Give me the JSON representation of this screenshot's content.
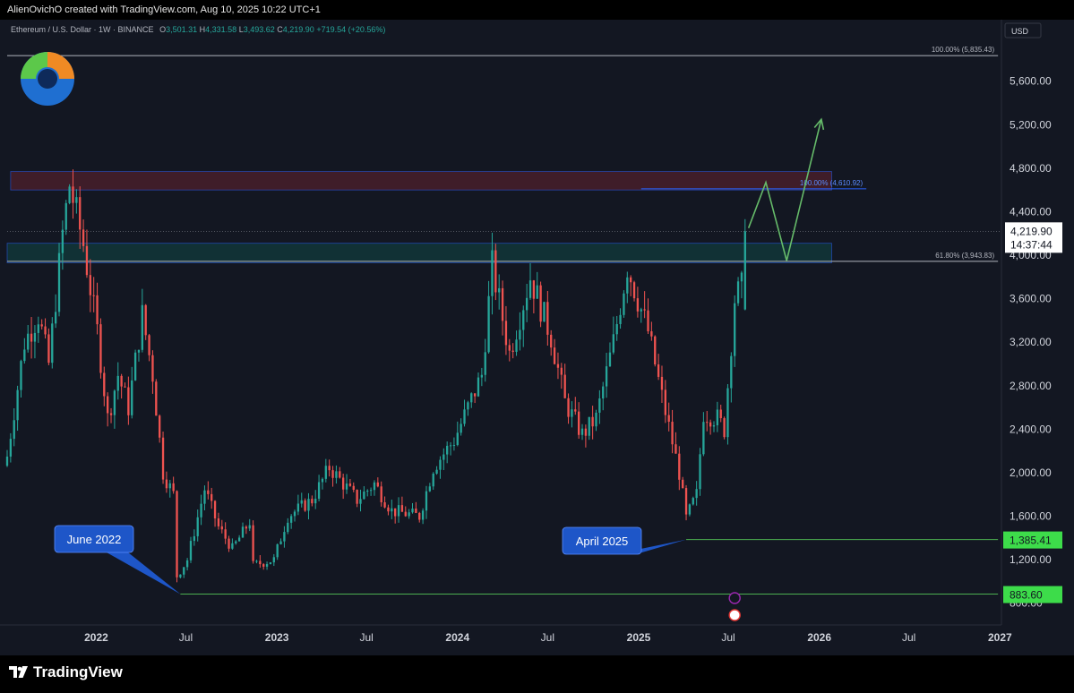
{
  "header": {
    "credit": "AlienOvichO created with TradingView.com, Aug 10, 2025 10:22 UTC+1"
  },
  "symbol": {
    "name": "Ethereum / U.S. Dollar · 1W · BINANCE",
    "o_label": "O",
    "o_val": "3,501.31",
    "h_label": "H",
    "h_val": "4,331.58",
    "l_label": "L",
    "l_val": "3,493.62",
    "c_label": "C",
    "c_val": "4,219.90",
    "change": "+719.54 (+20.56%)"
  },
  "brand": {
    "name": "TradingView"
  },
  "colors": {
    "up": "#26a69a",
    "down": "#ef5350",
    "background": "#131722",
    "green_line": "#4caf50",
    "blue_line": "#2962ff",
    "callout": "#1e56c8",
    "projection": "#66bb6a"
  },
  "chart_data": {
    "type": "candlestick",
    "currency": "USD",
    "ylim": [
      600,
      5960
    ],
    "ytick_labels": [
      "800.00",
      "1,200.00",
      "1,600.00",
      "2,000.00",
      "2,400.00",
      "2,800.00",
      "3,200.00",
      "3,600.00",
      "4,000.00",
      "4,400.00",
      "4,800.00",
      "5,200.00",
      "5,600.00"
    ],
    "yticks": [
      800,
      1200,
      1600,
      2000,
      2400,
      2800,
      3200,
      3600,
      4000,
      4400,
      4800,
      5200,
      5600
    ],
    "x_range": [
      "2021-07-05",
      "2027-01-04"
    ],
    "xticks": [
      "2022",
      "Jul",
      "2023",
      "Jul",
      "2024",
      "Jul",
      "2025",
      "Jul",
      "2026",
      "Jul",
      "2027"
    ],
    "xtick_dates": [
      "2022-01-01",
      "2022-07-01",
      "2023-01-01",
      "2023-07-01",
      "2024-01-01",
      "2024-07-01",
      "2025-01-01",
      "2025-07-01",
      "2026-01-01",
      "2026-07-01",
      "2027-01-01"
    ],
    "anchors": [
      {
        "date": "2021-07-05",
        "close": 2150
      },
      {
        "date": "2021-08-09",
        "close": 3200
      },
      {
        "date": "2021-09-06",
        "close": 3450
      },
      {
        "date": "2021-09-27",
        "close": 3000
      },
      {
        "date": "2021-10-25",
        "close": 4200
      },
      {
        "date": "2021-11-08",
        "close": 4650
      },
      {
        "date": "2021-12-06",
        "close": 4100
      },
      {
        "date": "2022-01-03",
        "close": 3300
      },
      {
        "date": "2022-01-24",
        "close": 2500
      },
      {
        "date": "2022-02-14",
        "close": 2900
      },
      {
        "date": "2022-03-07",
        "close": 2600
      },
      {
        "date": "2022-04-04",
        "close": 3450
      },
      {
        "date": "2022-04-25",
        "close": 2900
      },
      {
        "date": "2022-05-16",
        "close": 2000
      },
      {
        "date": "2022-06-06",
        "close": 1800
      },
      {
        "date": "2022-06-13",
        "close": 1050
      },
      {
        "date": "2022-07-04",
        "close": 1200
      },
      {
        "date": "2022-08-08",
        "close": 1850
      },
      {
        "date": "2022-09-05",
        "close": 1500
      },
      {
        "date": "2022-10-03",
        "close": 1300
      },
      {
        "date": "2022-11-07",
        "close": 1550
      },
      {
        "date": "2022-11-14",
        "close": 1150
      },
      {
        "date": "2022-12-26",
        "close": 1200
      },
      {
        "date": "2023-01-23",
        "close": 1600
      },
      {
        "date": "2023-03-13",
        "close": 1750
      },
      {
        "date": "2023-04-17",
        "close": 2050
      },
      {
        "date": "2023-06-12",
        "close": 1750
      },
      {
        "date": "2023-07-17",
        "close": 1900
      },
      {
        "date": "2023-08-21",
        "close": 1650
      },
      {
        "date": "2023-10-16",
        "close": 1600
      },
      {
        "date": "2023-11-13",
        "close": 2050
      },
      {
        "date": "2023-12-25",
        "close": 2300
      },
      {
        "date": "2024-02-19",
        "close": 2900
      },
      {
        "date": "2024-03-11",
        "close": 3900
      },
      {
        "date": "2024-04-15",
        "close": 3100
      },
      {
        "date": "2024-05-27",
        "close": 3800
      },
      {
        "date": "2024-07-08",
        "close": 3250
      },
      {
        "date": "2024-08-05",
        "close": 2650
      },
      {
        "date": "2024-09-09",
        "close": 2350
      },
      {
        "date": "2024-10-07",
        "close": 2500
      },
      {
        "date": "2024-11-11",
        "close": 3200
      },
      {
        "date": "2024-12-09",
        "close": 3900
      },
      {
        "date": "2025-01-20",
        "close": 3300
      },
      {
        "date": "2025-02-17",
        "close": 2700
      },
      {
        "date": "2025-03-24",
        "close": 2000
      },
      {
        "date": "2025-04-07",
        "close": 1580
      },
      {
        "date": "2025-04-28",
        "close": 1800
      },
      {
        "date": "2025-05-12",
        "close": 2550
      },
      {
        "date": "2025-06-09",
        "close": 2500
      },
      {
        "date": "2025-06-23",
        "close": 2400
      },
      {
        "date": "2025-07-14",
        "close": 3600
      },
      {
        "date": "2025-07-28",
        "close": 3700
      },
      {
        "date": "2025-08-04",
        "close": 4219.9
      }
    ],
    "zones": [
      {
        "kind": "resistance",
        "from": "2021-07-12",
        "to": "2026-01-26",
        "low": 4600,
        "high": 4770,
        "color": "#f23645"
      },
      {
        "kind": "support",
        "from": "2021-07-05",
        "to": "2026-01-26",
        "low": 3930,
        "high": 4110,
        "color": "#089981"
      }
    ],
    "hlines": [
      {
        "label": "100.00% (5,835.43)",
        "value": 5835.43,
        "from": "2021-07-05",
        "to": "2026-12-28",
        "color": "#b2b5be"
      },
      {
        "label": "100.00% (4,610.92)",
        "value": 4610.92,
        "from": "2025-01-06",
        "to": "2026-04-06",
        "color": "#2962ff"
      },
      {
        "label": "61.80% (3,943.83)",
        "value": 3943.83,
        "from": "2021-07-05",
        "to": "2026-12-28",
        "color": "#b2b5be"
      },
      {
        "label": "",
        "value": 1385.41,
        "from": "2025-04-07",
        "to": "2026-12-28",
        "color": "#4caf50"
      },
      {
        "label": "",
        "value": 883.6,
        "from": "2022-06-20",
        "to": "2026-12-28",
        "color": "#4caf50"
      }
    ],
    "price_badges": [
      {
        "value": 4219.9,
        "text": "4,219.90",
        "sub": "14:37:44"
      },
      {
        "value": 1385.41,
        "text": "1,385.41"
      },
      {
        "value": 883.6,
        "text": "883.60"
      }
    ],
    "callouts": [
      {
        "text": "June 2022",
        "date": "2022-06-20",
        "value": 883.6
      },
      {
        "text": "April 2025",
        "date": "2025-04-07",
        "value": 1385.41
      }
    ],
    "projection": [
      {
        "date": "2025-08-11",
        "value": 4250
      },
      {
        "date": "2025-09-15",
        "value": 4670
      },
      {
        "date": "2025-10-27",
        "value": 3950
      },
      {
        "date": "2026-01-05",
        "value": 5250
      }
    ]
  }
}
